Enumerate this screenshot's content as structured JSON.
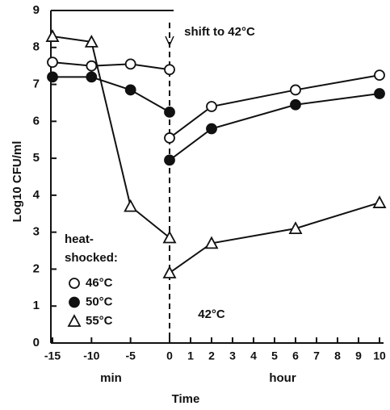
{
  "axis_title": "Time",
  "ylabel": "Log10 CFU/ml",
  "ylim": [
    0,
    9
  ],
  "yticks": [
    0,
    1,
    2,
    3,
    4,
    5,
    6,
    7,
    8,
    9
  ],
  "legend_title": [
    "heat-",
    "shocked:"
  ],
  "annotations": [
    "shift to 42°C",
    "42°C"
  ],
  "chart_data": [
    {
      "type": "line",
      "xlabel": "min",
      "xlim": [
        -15,
        0
      ],
      "xticks": [
        -15,
        -10,
        -5,
        0
      ],
      "x": [
        -15,
        -10,
        -5,
        0
      ],
      "series": [
        {
          "name": "46°C",
          "color": "#111111",
          "marker": "open-circle",
          "values": [
            7.6,
            7.5,
            7.55,
            7.4
          ]
        },
        {
          "name": "50°C",
          "color": "#111111",
          "marker": "filled-circle",
          "values": [
            7.2,
            7.2,
            6.85,
            6.25
          ]
        },
        {
          "name": "55°C",
          "color": "#111111",
          "marker": "open-triangle",
          "values": [
            8.3,
            8.15,
            3.7,
            2.85
          ]
        }
      ]
    },
    {
      "type": "line",
      "xlabel": "hour",
      "xlim": [
        0,
        10
      ],
      "xticks": [
        1,
        2,
        3,
        4,
        5,
        6,
        7,
        8,
        9,
        10
      ],
      "x": [
        0,
        2,
        6,
        10
      ],
      "series": [
        {
          "name": "46°C",
          "color": "#111111",
          "marker": "open-circle",
          "values": [
            5.55,
            6.4,
            6.85,
            7.25
          ]
        },
        {
          "name": "50°C",
          "color": "#111111",
          "marker": "filled-circle",
          "values": [
            4.95,
            5.8,
            6.45,
            6.75
          ]
        },
        {
          "name": "55°C",
          "color": "#111111",
          "marker": "open-triangle",
          "values": [
            1.9,
            2.7,
            3.1,
            3.8
          ]
        }
      ]
    }
  ]
}
